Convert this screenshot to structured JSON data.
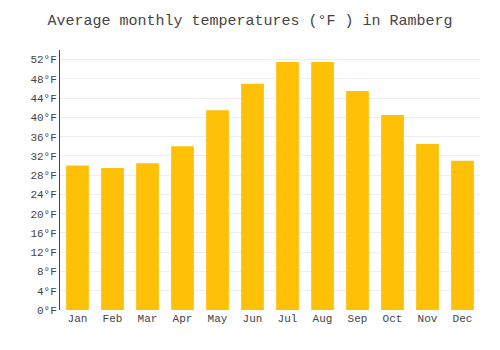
{
  "chart_data": {
    "type": "bar",
    "title": "Average monthly temperatures (°F ) in Ramberg",
    "categories": [
      "Jan",
      "Feb",
      "Mar",
      "Apr",
      "May",
      "Jun",
      "Jul",
      "Aug",
      "Sep",
      "Oct",
      "Nov",
      "Dec"
    ],
    "values": [
      30,
      29.5,
      30.5,
      34,
      41.5,
      47,
      51.5,
      51.5,
      45.5,
      40.5,
      34.5,
      31
    ],
    "color": "#FFC107",
    "ylim": [
      0,
      54
    ],
    "yticks": [
      {
        "value": 0,
        "label": "0°F"
      },
      {
        "value": 4,
        "label": "4°F"
      },
      {
        "value": 8,
        "label": "8°F"
      },
      {
        "value": 12,
        "label": "12°F"
      },
      {
        "value": 16,
        "label": "16°F"
      },
      {
        "value": 20,
        "label": "20°F"
      },
      {
        "value": 24,
        "label": "24°F"
      },
      {
        "value": 28,
        "label": "28°F"
      },
      {
        "value": 32,
        "label": "32°F"
      },
      {
        "value": 36,
        "label": "36°F"
      },
      {
        "value": 40,
        "label": "40°F"
      },
      {
        "value": 44,
        "label": "44°F"
      },
      {
        "value": 48,
        "label": "48°F"
      },
      {
        "value": 52,
        "label": "52°F"
      }
    ],
    "grid": true
  }
}
